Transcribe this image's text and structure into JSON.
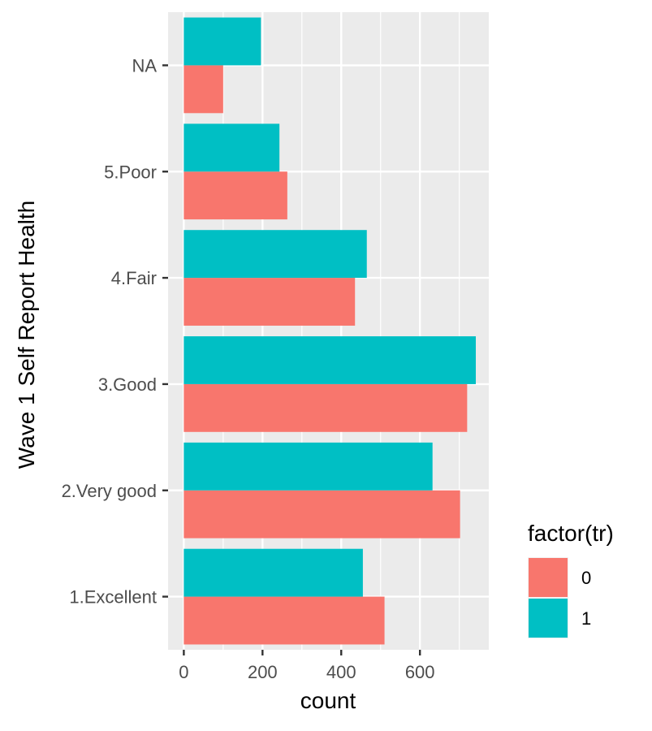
{
  "chart_data": {
    "type": "bar",
    "orientation": "horizontal",
    "title": "",
    "xlabel": "count",
    "ylabel": "Wave 1 Self Report Health",
    "categories": [
      "1.Excellent",
      "2.Very good",
      "3.Good",
      "4.Fair",
      "5.Poor",
      "NA"
    ],
    "series": [
      {
        "name": "0",
        "color": "#F8766D",
        "values": [
          510,
          702,
          720,
          435,
          263,
          100
        ]
      },
      {
        "name": "1",
        "color": "#00BFC4",
        "values": [
          455,
          632,
          742,
          465,
          243,
          196
        ]
      }
    ],
    "xlim": [
      -40,
      775
    ],
    "xticks": [
      0,
      200,
      400,
      600
    ],
    "grid": true,
    "panel_background": "#EBEBEB",
    "legend": {
      "title": "factor(tr)",
      "position": "right",
      "entries": [
        "0",
        "1"
      ]
    }
  }
}
